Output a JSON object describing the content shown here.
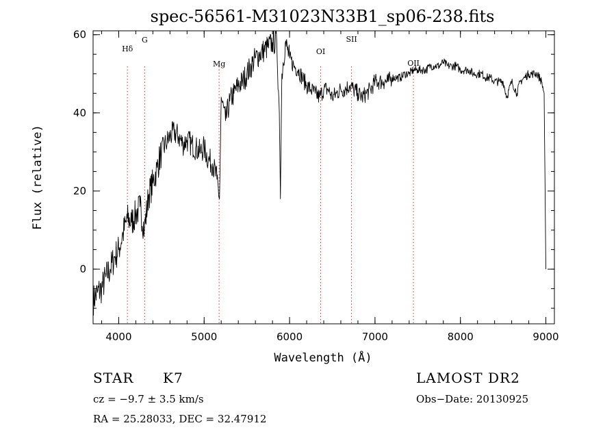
{
  "chart_data": {
    "type": "line",
    "title": "spec-56561-M31023N33B1_sp06-238.fits",
    "xlabel": "Wavelength (Å)",
    "ylabel": "Flux (relative)",
    "xlim": [
      3700,
      9100
    ],
    "ylim": [
      -14,
      61
    ],
    "x_ticks": [
      4000,
      5000,
      6000,
      7000,
      8000,
      9000
    ],
    "x_tick_labels": [
      "4000",
      "5000",
      "6000",
      "7000",
      "8000",
      "9000"
    ],
    "y_ticks": [
      0,
      20,
      40,
      60
    ],
    "y_tick_labels": [
      "0",
      "20",
      "40",
      "60"
    ],
    "grid": false,
    "line_color": "#000000",
    "marker_line_color": "#cc3333",
    "line_markers": [
      {
        "label": "Hδ",
        "x": 4102
      },
      {
        "label": "G",
        "x": 4304
      },
      {
        "label": "Mg",
        "x": 5175
      },
      {
        "label": "OI",
        "x": 6364
      },
      {
        "label": "SII",
        "x": 6725
      },
      {
        "label": "OII",
        "x": 7450
      }
    ],
    "series": [
      {
        "x": [
          3700,
          3750,
          3800,
          3850,
          3900,
          3950,
          4000,
          4050,
          4100,
          4150,
          4200,
          4250,
          4300,
          4350,
          4400,
          4450,
          4500,
          4550,
          4600,
          4650,
          4700,
          4750,
          4800,
          4850,
          4900,
          4950,
          5000,
          5050,
          5100,
          5150,
          5180,
          5200,
          5250,
          5300,
          5350,
          5400,
          5450,
          5500,
          5550,
          5600,
          5650,
          5700,
          5750,
          5800,
          5850,
          5880,
          5893,
          5910,
          5950,
          6000,
          6050,
          6100,
          6150,
          6200,
          6250,
          6300,
          6350,
          6400,
          6450,
          6500,
          6550,
          6600,
          6650,
          6700,
          6750,
          6800,
          6850,
          6900,
          6950,
          7000,
          7050,
          7100,
          7150,
          7200,
          7250,
          7300,
          7350,
          7400,
          7450,
          7500,
          7550,
          7600,
          7650,
          7700,
          7750,
          7800,
          7850,
          7900,
          7950,
          8000,
          8050,
          8100,
          8150,
          8200,
          8250,
          8300,
          8350,
          8400,
          8450,
          8500,
          8542,
          8600,
          8662,
          8700,
          8750,
          8800,
          8850,
          8900,
          8950,
          8980,
          9000
        ],
        "y": [
          -8,
          -6,
          -5,
          -2,
          0,
          3,
          5,
          9,
          13,
          12,
          14,
          16,
          10,
          19,
          22,
          26,
          30,
          32,
          34,
          35,
          34,
          32,
          33,
          32,
          31,
          30,
          31,
          28,
          27,
          23,
          18,
          44,
          38,
          43,
          45,
          47,
          48,
          50,
          52,
          54,
          55,
          56,
          57,
          58,
          58,
          40,
          18,
          50,
          58,
          54,
          52,
          51,
          49,
          47,
          46,
          45,
          44,
          46,
          46,
          44,
          45,
          46,
          46,
          47,
          46,
          45,
          44,
          45,
          46,
          48,
          48,
          48,
          48,
          49,
          49,
          49,
          50,
          50,
          51,
          51,
          51,
          51,
          52,
          52,
          52,
          53,
          52,
          52,
          52,
          51,
          51,
          51,
          50,
          50,
          50,
          49,
          49,
          48,
          48,
          48,
          44,
          48,
          45,
          48,
          49,
          50,
          50,
          50,
          48,
          45,
          0
        ]
      }
    ]
  },
  "info": {
    "class_label": "STAR",
    "subclass": "K7",
    "cz_text": "cz = −9.7 ± 3.5 km/s",
    "coords_text": "RA =  25.28033, DEC =  32.47912",
    "survey": "LAMOST DR2",
    "obs_date": "Obs−Date: 20130925"
  }
}
